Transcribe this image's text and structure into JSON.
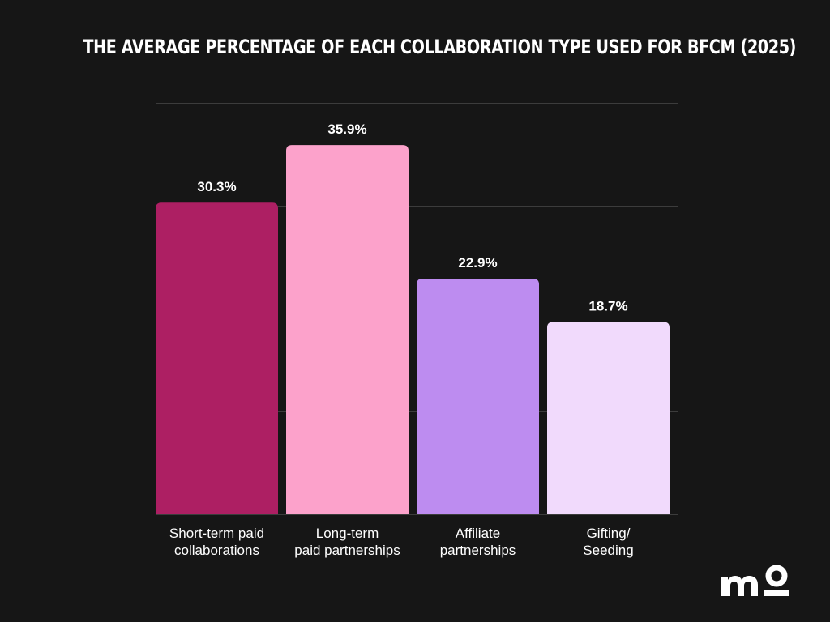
{
  "chart_data": {
    "type": "bar",
    "title": "THE AVERAGE PERCENTAGE OF EACH COLLABORATION TYPE USED FOR BFCM (2025)",
    "categories": [
      [
        "Short-term paid",
        "collaborations"
      ],
      [
        "Long-term",
        "paid partnerships"
      ],
      [
        "Affiliate",
        "partnerships"
      ],
      [
        "Gifting/",
        "Seeding"
      ]
    ],
    "values": [
      30.3,
      35.9,
      22.9,
      18.7
    ],
    "data_labels": [
      "30.3%",
      "35.9%",
      "22.9%",
      "18.7%"
    ],
    "colors": [
      "#ad1f63",
      "#fca2cb",
      "#bd8cf0",
      "#f1dafc"
    ],
    "ylim": [
      0,
      40
    ],
    "yticks": [
      0,
      10,
      20,
      30,
      40
    ],
    "grid": true,
    "xlabel": "",
    "ylabel": ""
  },
  "colors": {
    "background": "#161616",
    "grid": "#3c3c3c",
    "text": "#ffffff"
  },
  "logo": {
    "icon": "mo-logo"
  }
}
